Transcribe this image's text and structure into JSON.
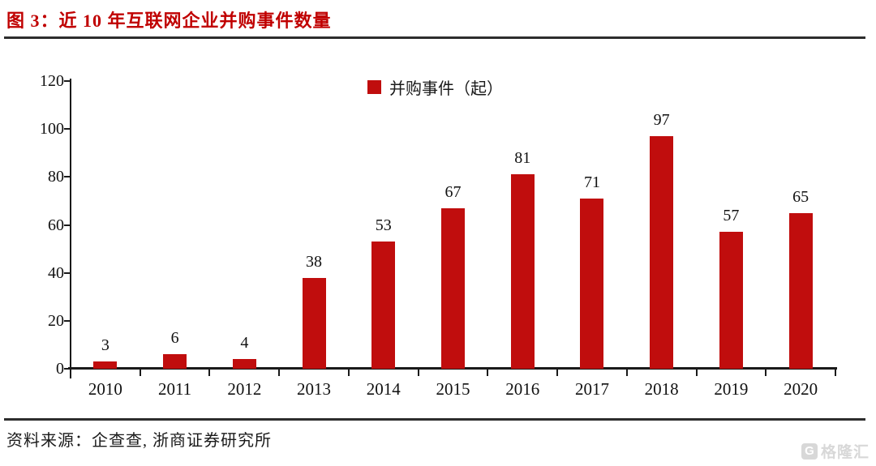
{
  "header": {
    "title": "图 3：近 10 年互联网企业并购事件数量"
  },
  "chart_data": {
    "type": "bar",
    "title": "近 10 年互联网企业并购事件数量",
    "categories": [
      "2010",
      "2011",
      "2012",
      "2013",
      "2014",
      "2015",
      "2016",
      "2017",
      "2018",
      "2019",
      "2020"
    ],
    "values": [
      3,
      6,
      4,
      38,
      53,
      67,
      81,
      71,
      97,
      57,
      65
    ],
    "legend": "并购事件（起）",
    "legend_position": "top-center",
    "xlabel": "",
    "ylabel": "",
    "ylim": [
      0,
      120
    ],
    "yticks": [
      0,
      20,
      40,
      60,
      80,
      100,
      120
    ],
    "grid": false,
    "bar_color": "#c00d0d"
  },
  "footer": {
    "source": "资料来源：企查查, 浙商证券研究所"
  },
  "watermark": {
    "logo_letter": "G",
    "text": "格隆汇"
  },
  "colors": {
    "title": "#c00000",
    "bar": "#c00d0d",
    "axis": "#1a1a1a",
    "rule": "#2d2d2d",
    "watermark": "#d8d8d8"
  }
}
